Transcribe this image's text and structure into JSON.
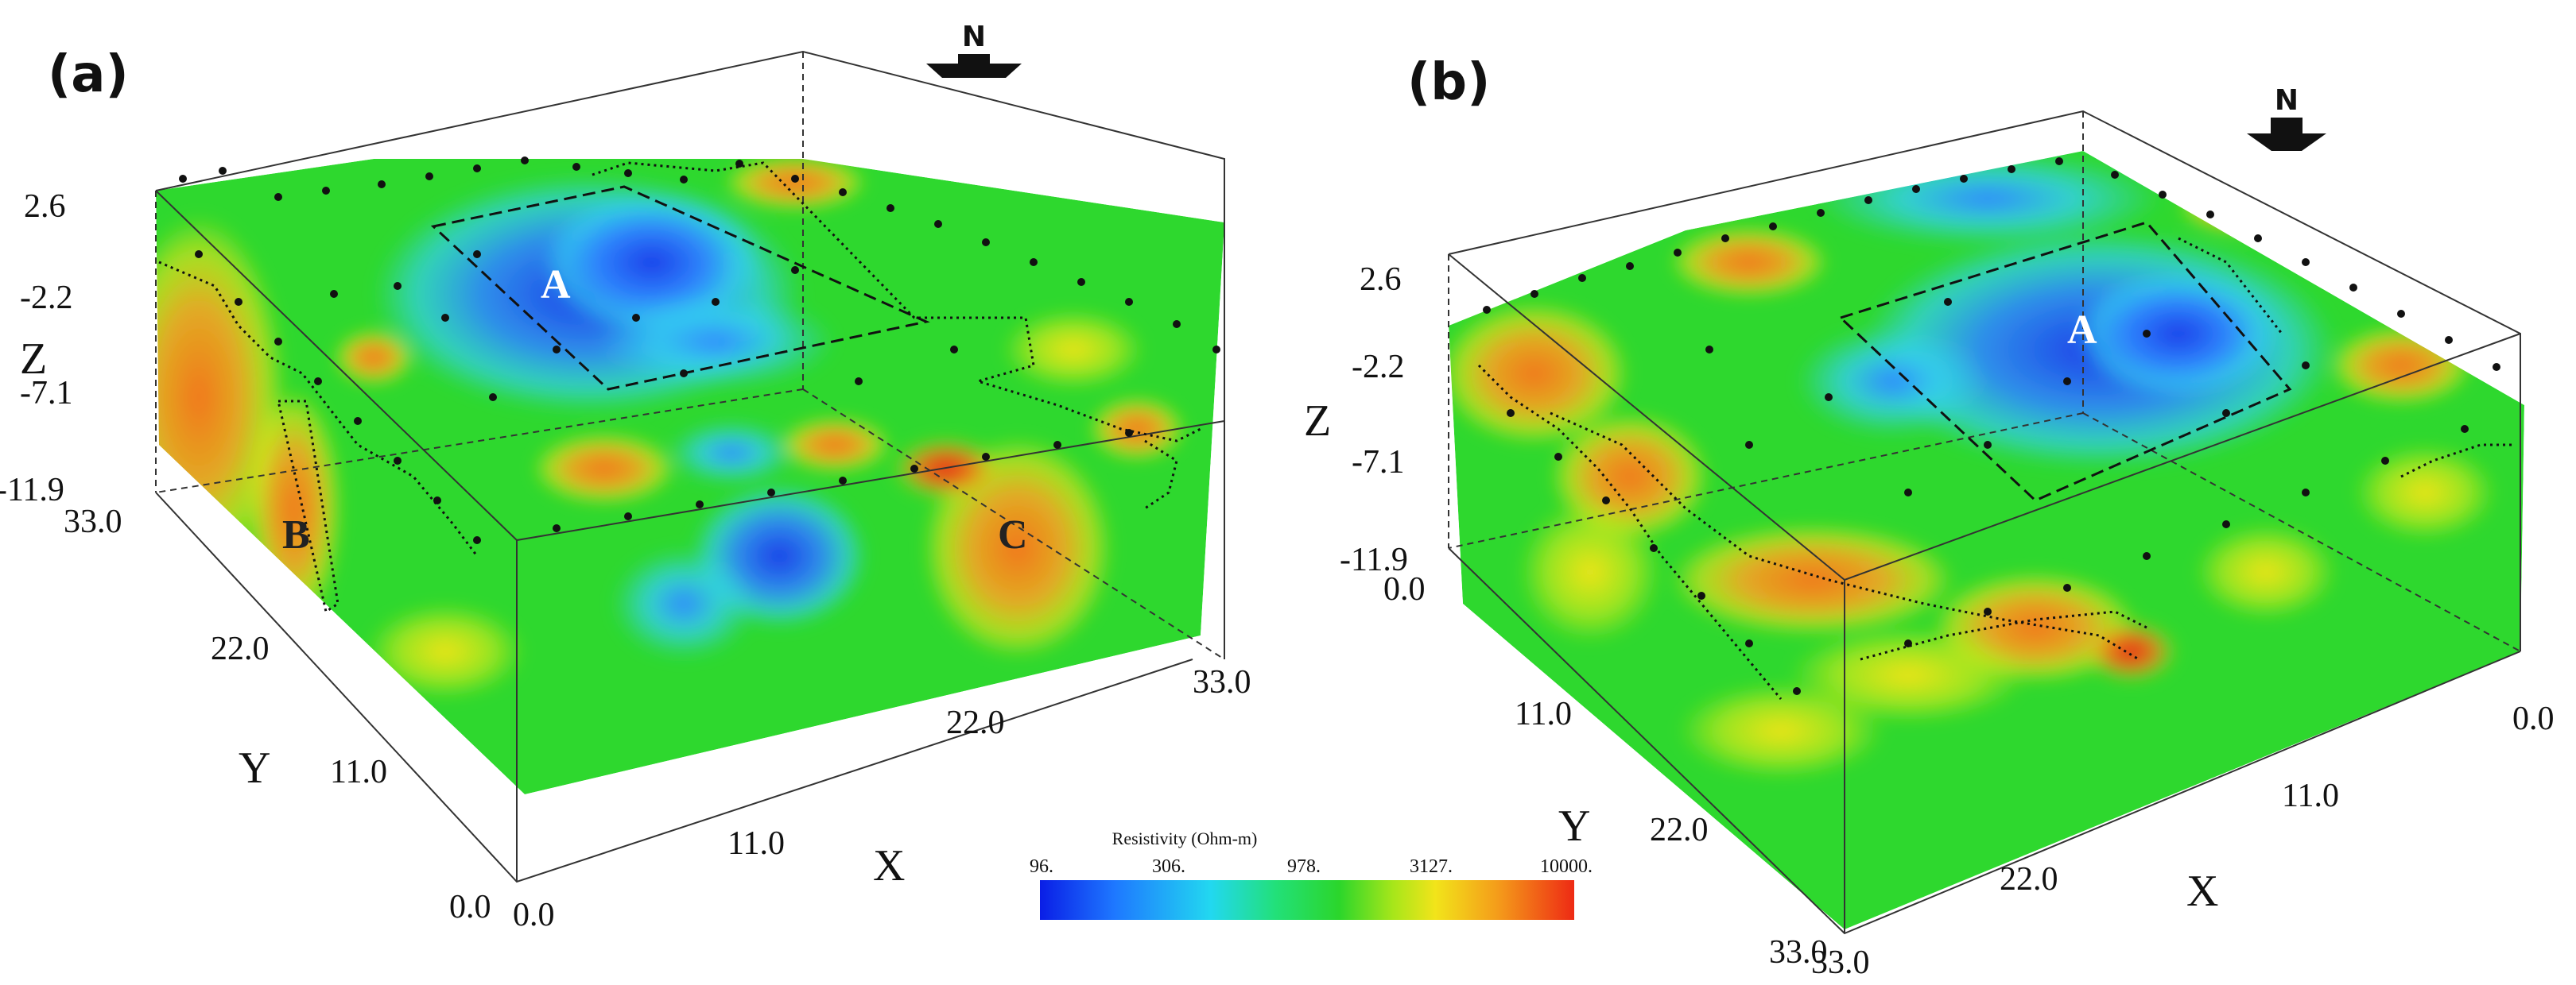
{
  "panels": [
    {
      "label": "(a)",
      "north": "N",
      "z_ticks": [
        "2.6",
        "-2.2",
        "-7.1",
        "-11.9"
      ],
      "y_ticks": [
        "33.0",
        "22.0",
        "11.0",
        "0.0"
      ],
      "x_ticks": [
        "0.0",
        "11.0",
        "22.0",
        "33.0"
      ],
      "x_axis": "X",
      "y_axis": "Y",
      "z_axis": "Z",
      "anomalies": [
        "A",
        "B",
        "C"
      ]
    },
    {
      "label": "(b)",
      "north": "N",
      "z_ticks": [
        "2.6",
        "-2.2",
        "-7.1",
        "-11.9"
      ],
      "y_ticks": [
        "0.0",
        "11.0",
        "22.0",
        "33.0"
      ],
      "x_ticks": [
        "33.0",
        "22.0",
        "11.0",
        "0.0"
      ],
      "x_axis": "X",
      "y_axis": "Y",
      "z_axis": "Z",
      "anomalies": [
        "A"
      ]
    }
  ],
  "colorbar": {
    "title": "Resistivity (Ohm-m)",
    "ticks": [
      "96.",
      "306.",
      "978.",
      "3127.",
      "10000."
    ],
    "colors": [
      "#0a1ee6",
      "#1e78ff",
      "#22d8f0",
      "#22e07a",
      "#2bd62b",
      "#a6e61a",
      "#f2e41a",
      "#f49a1a",
      "#ee2a14"
    ]
  }
}
